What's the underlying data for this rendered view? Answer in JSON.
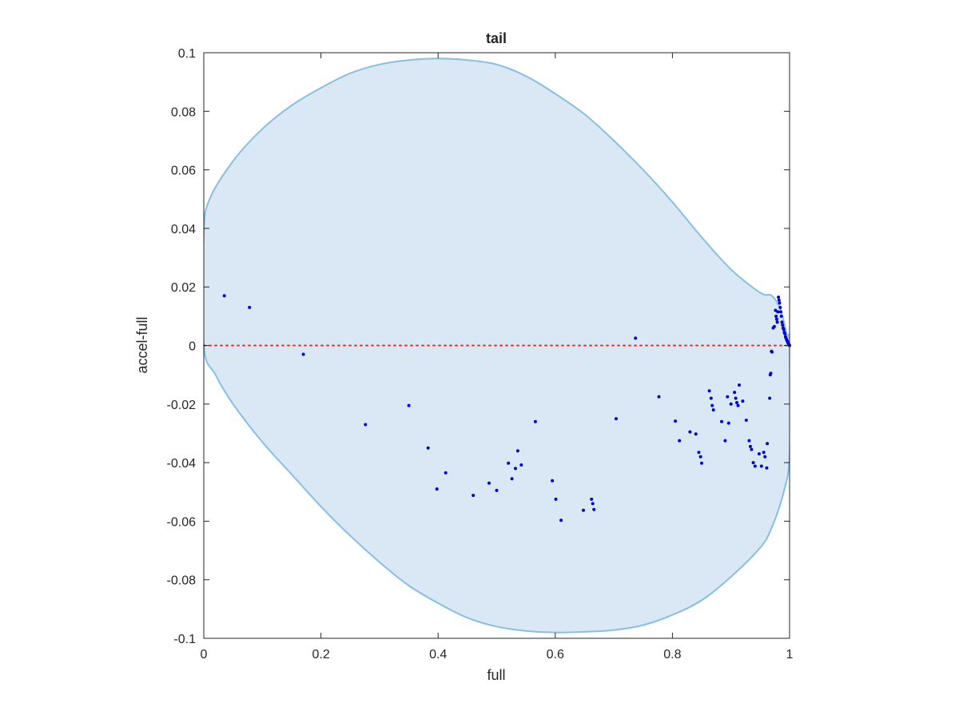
{
  "chart_data": {
    "type": "scatter",
    "title": "tail",
    "xlabel": "full",
    "ylabel": "accel-full",
    "xlim": [
      0,
      1
    ],
    "ylim": [
      -0.1,
      0.1
    ],
    "x_ticks": [
      "0",
      "0.2",
      "0.4",
      "0.6",
      "0.8",
      "1"
    ],
    "y_ticks": [
      "-0.1",
      "-0.08",
      "-0.06",
      "-0.04",
      "-0.02",
      "0",
      "0.02",
      "0.04",
      "0.06",
      "0.08",
      "0.1"
    ],
    "grid": false,
    "colors": {
      "points": "#0000cc",
      "region_fill": "#d9e8f4",
      "region_edge": "#88bfe0",
      "reference_line": "#e03030",
      "axes": "#262626"
    },
    "reference_line": {
      "y": 0,
      "style": "dotted"
    },
    "region": {
      "shape": "ellipse",
      "boundary": [
        [
          0.0,
          0.038
        ],
        [
          0.01,
          0.05
        ],
        [
          0.05,
          0.063
        ],
        [
          0.1,
          0.074
        ],
        [
          0.15,
          0.082
        ],
        [
          0.2,
          0.088
        ],
        [
          0.25,
          0.093
        ],
        [
          0.3,
          0.096
        ],
        [
          0.35,
          0.0975
        ],
        [
          0.4,
          0.098
        ],
        [
          0.45,
          0.0975
        ],
        [
          0.5,
          0.096
        ],
        [
          0.55,
          0.092
        ],
        [
          0.6,
          0.086
        ],
        [
          0.65,
          0.079
        ],
        [
          0.7,
          0.07
        ],
        [
          0.75,
          0.06
        ],
        [
          0.8,
          0.049
        ],
        [
          0.85,
          0.037
        ],
        [
          0.9,
          0.026
        ],
        [
          0.95,
          0.018
        ],
        [
          0.97,
          0.017
        ],
        [
          0.985,
          0.012
        ],
        [
          0.995,
          0.004
        ],
        [
          1.0,
          0.0
        ],
        [
          1.0,
          -0.037
        ],
        [
          0.99,
          -0.05
        ],
        [
          0.97,
          -0.062
        ],
        [
          0.95,
          -0.069
        ],
        [
          0.9,
          -0.079
        ],
        [
          0.85,
          -0.087
        ],
        [
          0.8,
          -0.092
        ],
        [
          0.75,
          -0.0955
        ],
        [
          0.7,
          -0.0972
        ],
        [
          0.65,
          -0.0978
        ],
        [
          0.6,
          -0.098
        ],
        [
          0.55,
          -0.0975
        ],
        [
          0.5,
          -0.096
        ],
        [
          0.45,
          -0.093
        ],
        [
          0.4,
          -0.088
        ],
        [
          0.35,
          -0.082
        ],
        [
          0.3,
          -0.074
        ],
        [
          0.25,
          -0.065
        ],
        [
          0.2,
          -0.055
        ],
        [
          0.15,
          -0.044
        ],
        [
          0.1,
          -0.033
        ],
        [
          0.05,
          -0.02
        ],
        [
          0.02,
          -0.01
        ],
        [
          0.0,
          0.0
        ]
      ]
    },
    "points": [
      [
        0.035,
        0.017
      ],
      [
        0.078,
        0.013
      ],
      [
        0.17,
        -0.003
      ],
      [
        0.276,
        -0.027
      ],
      [
        0.35,
        -0.0205
      ],
      [
        0.383,
        -0.035
      ],
      [
        0.398,
        -0.049
      ],
      [
        0.413,
        -0.0435
      ],
      [
        0.46,
        -0.0512
      ],
      [
        0.487,
        -0.047
      ],
      [
        0.5,
        -0.0495
      ],
      [
        0.52,
        -0.0402
      ],
      [
        0.526,
        -0.0455
      ],
      [
        0.532,
        -0.042
      ],
      [
        0.536,
        -0.036
      ],
      [
        0.542,
        -0.0408
      ],
      [
        0.566,
        -0.026
      ],
      [
        0.595,
        -0.0462
      ],
      [
        0.601,
        -0.0525
      ],
      [
        0.61,
        -0.0597
      ],
      [
        0.648,
        -0.0563
      ],
      [
        0.662,
        -0.0525
      ],
      [
        0.664,
        -0.054
      ],
      [
        0.666,
        -0.056
      ],
      [
        0.704,
        -0.025
      ],
      [
        0.737,
        0.0025
      ],
      [
        0.777,
        -0.0175
      ],
      [
        0.805,
        -0.0258
      ],
      [
        0.812,
        -0.0325
      ],
      [
        0.83,
        -0.0295
      ],
      [
        0.84,
        -0.0302
      ],
      [
        0.845,
        -0.0365
      ],
      [
        0.848,
        -0.038
      ],
      [
        0.85,
        -0.0402
      ],
      [
        0.863,
        -0.0155
      ],
      [
        0.866,
        -0.018
      ],
      [
        0.868,
        -0.0205
      ],
      [
        0.87,
        -0.022
      ],
      [
        0.884,
        -0.026
      ],
      [
        0.89,
        -0.0325
      ],
      [
        0.894,
        -0.0175
      ],
      [
        0.896,
        -0.0265
      ],
      [
        0.9,
        -0.02
      ],
      [
        0.906,
        -0.016
      ],
      [
        0.908,
        -0.018
      ],
      [
        0.91,
        -0.0195
      ],
      [
        0.912,
        -0.0205
      ],
      [
        0.914,
        -0.0135
      ],
      [
        0.92,
        -0.019
      ],
      [
        0.926,
        -0.0255
      ],
      [
        0.931,
        -0.0325
      ],
      [
        0.933,
        -0.0345
      ],
      [
        0.935,
        -0.0355
      ],
      [
        0.938,
        -0.04
      ],
      [
        0.941,
        -0.0412
      ],
      [
        0.948,
        -0.037
      ],
      [
        0.952,
        -0.0412
      ],
      [
        0.956,
        -0.0365
      ],
      [
        0.958,
        -0.038
      ],
      [
        0.961,
        -0.0418
      ],
      [
        0.962,
        -0.0335
      ],
      [
        0.966,
        -0.018
      ],
      [
        0.967,
        -0.01
      ],
      [
        0.968,
        -0.0095
      ],
      [
        0.969,
        -0.002
      ],
      [
        0.97,
        -0.0022
      ],
      [
        0.972,
        0.006
      ],
      [
        0.974,
        0.0065
      ],
      [
        0.976,
        0.012
      ],
      [
        0.977,
        0.01
      ],
      [
        0.978,
        0.009
      ],
      [
        0.979,
        0.008
      ],
      [
        0.98,
        0.0115
      ],
      [
        0.981,
        0.0165
      ],
      [
        0.982,
        0.0155
      ],
      [
        0.983,
        0.0145
      ],
      [
        0.984,
        0.013
      ],
      [
        0.985,
        0.0115
      ],
      [
        0.986,
        0.01
      ],
      [
        0.987,
        0.008
      ],
      [
        0.988,
        0.007
      ],
      [
        0.989,
        0.006
      ],
      [
        0.99,
        0.0055
      ],
      [
        0.991,
        0.0045
      ],
      [
        0.992,
        0.004
      ],
      [
        0.993,
        0.003
      ],
      [
        0.994,
        0.0025
      ],
      [
        0.995,
        0.002
      ],
      [
        0.996,
        0.0015
      ],
      [
        0.997,
        0.001
      ],
      [
        0.998,
        0.0008
      ],
      [
        0.999,
        0.0004
      ],
      [
        1.0,
        0.0
      ]
    ]
  }
}
